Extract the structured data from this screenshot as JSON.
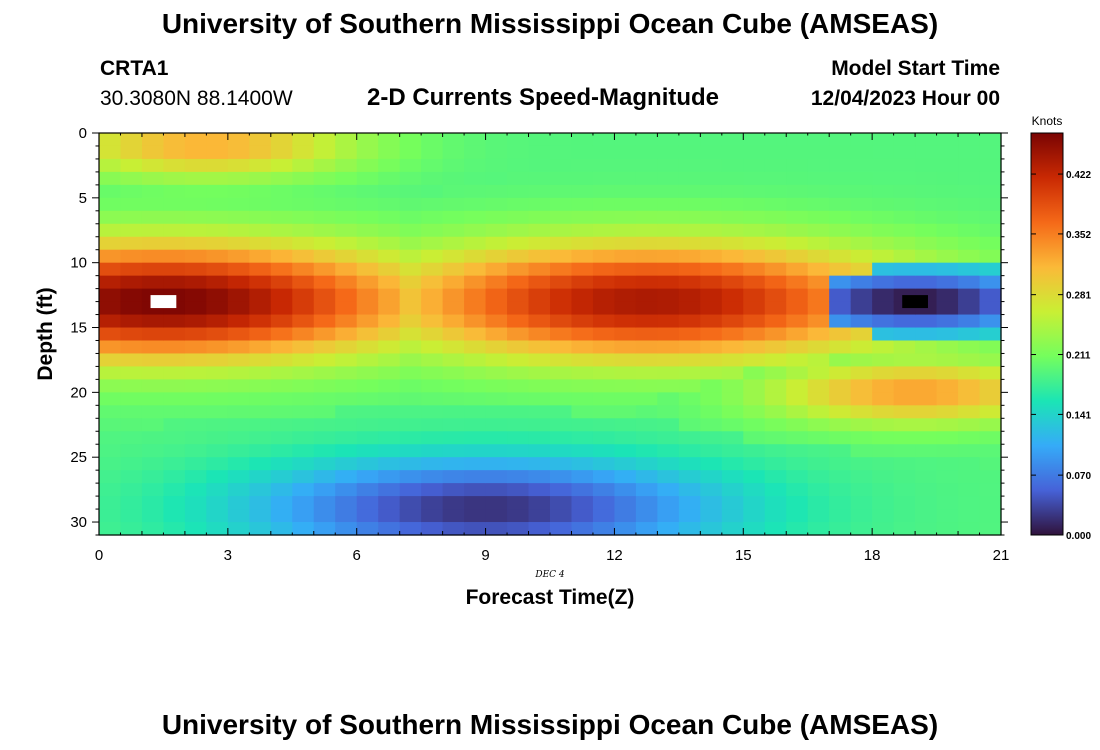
{
  "header": {
    "title": "University of Southern Mississippi Ocean Cube (AMSEAS)",
    "station": "CRTA1",
    "coords": "30.3080N  88.1400W",
    "chart_title": "2-D Currents Speed-Magnitude",
    "model_label": "Model Start Time",
    "model_time": "12/04/2023 Hour 00"
  },
  "footer": {
    "title": "University of Southern Mississippi Ocean Cube (AMSEAS)"
  },
  "chart_data": {
    "type": "heatmap",
    "title": "2-D Currents Speed-Magnitude",
    "xlabel": "Forecast Time(Z)",
    "ylabel": "Depth (ft)",
    "date_label": "DEC 4",
    "xlim": [
      0,
      21
    ],
    "ylim": [
      0,
      31
    ],
    "x_ticks": [
      0,
      3,
      6,
      9,
      12,
      15,
      18,
      21
    ],
    "y_ticks": [
      0,
      5,
      10,
      15,
      20,
      25,
      30
    ],
    "colorbar": {
      "label": "Knots",
      "range": [
        0,
        0.47
      ],
      "ticks": [
        "0.422",
        "0.352",
        "0.281",
        "0.211",
        "0.141",
        "0.070",
        "0.000"
      ],
      "tick_values": [
        0.422,
        0.352,
        0.281,
        0.211,
        0.141,
        0.07,
        0.0
      ],
      "colors": [
        "#30123b",
        "#4662d8",
        "#35abf8",
        "#1be5b5",
        "#74fe5d",
        "#c9ef34",
        "#fbb938",
        "#f56918",
        "#c92903",
        "#7a0403"
      ]
    },
    "features": [
      {
        "t": 1.5,
        "d": 13,
        "v": 0.47,
        "r": 4.5,
        "note": "max marker (white)"
      },
      {
        "t": 12.8,
        "d": 13,
        "v": 0.44,
        "r": 4.5
      },
      {
        "t": 19,
        "d": 13,
        "v": 0.0,
        "r": 2.5,
        "note": "min marker (black)"
      },
      {
        "t": 19,
        "d": 20,
        "v": 0.33,
        "r": 2.5
      },
      {
        "t": 9,
        "d": 29,
        "v": 0.02,
        "r": 4
      },
      {
        "t": 2.5,
        "d": 1,
        "v": 0.32,
        "r": 2.5
      }
    ],
    "markers": [
      {
        "name": "max",
        "t": 1.5,
        "d": 13,
        "color": "#ffffff"
      },
      {
        "name": "min",
        "t": 19,
        "d": 13,
        "color": "#000000"
      }
    ]
  }
}
